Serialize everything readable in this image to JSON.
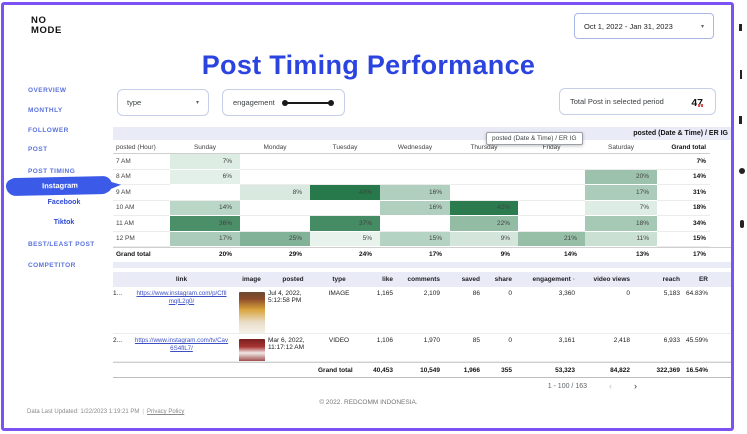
{
  "brand": {
    "line1": "NO",
    "line2": "MODE"
  },
  "header": {
    "date_range": "Oct 1, 2022 - Jan 31, 2023",
    "title": "Post Timing Performance"
  },
  "icons": {
    "dropdown": "▾",
    "prev": "‹",
    "next": "›"
  },
  "sidebar": {
    "items": [
      {
        "label": "OVERVIEW",
        "type": "section"
      },
      {
        "label": "MONTHLY",
        "type": "section"
      },
      {
        "label": "FOLLOWER",
        "type": "section"
      },
      {
        "label": "POST",
        "type": "section"
      },
      {
        "label": "POST TIMING",
        "type": "section"
      },
      {
        "label": "Instagram",
        "type": "sub-active"
      },
      {
        "label": "Facebook",
        "type": "sub"
      },
      {
        "label": "Tiktok",
        "type": "sub"
      },
      {
        "label": "BEST/LEAST POST",
        "type": "section"
      },
      {
        "label": "COMPETITOR",
        "type": "section"
      }
    ]
  },
  "filters": {
    "type_label": "type",
    "engagement_label": "engagement"
  },
  "scorecard": {
    "label": "Total Post in selected period",
    "value": "47"
  },
  "heatmap": {
    "section_title": "posted (Date & Time) / ER IG",
    "tooltip": "posted (Date & Time) / ER IG",
    "columns": [
      "posted (Hour)",
      "Sunday",
      "Monday",
      "Tuesday",
      "Wednesday",
      "Thursday",
      "Friday",
      "Saturday",
      "Grand total"
    ],
    "rows": [
      {
        "label": "7 AM",
        "values": [
          "7%",
          "",
          "",
          "",
          "",
          "",
          "",
          "7%"
        ]
      },
      {
        "label": "8 AM",
        "values": [
          "6%",
          "",
          "",
          "",
          "",
          "",
          "20%",
          "14%"
        ]
      },
      {
        "label": "9 AM",
        "values": [
          "",
          "8%",
          "43%",
          "16%",
          "",
          "",
          "17%",
          "31%"
        ]
      },
      {
        "label": "10 AM",
        "values": [
          "14%",
          "",
          "",
          "16%",
          "42%",
          "",
          "7%",
          "18%"
        ]
      },
      {
        "label": "11 AM",
        "values": [
          "36%",
          "",
          "37%",
          "",
          "22%",
          "",
          "18%",
          "34%"
        ]
      },
      {
        "label": "12 PM",
        "values": [
          "17%",
          "25%",
          "5%",
          "15%",
          "9%",
          "21%",
          "11%",
          "15%"
        ]
      },
      {
        "label": "Grand total",
        "values": [
          "20%",
          "29%",
          "24%",
          "17%",
          "9%",
          "14%",
          "13%",
          "17%"
        ],
        "is_total": true
      }
    ],
    "heat_low_color": "#e8f3ed",
    "heat_high_color": "#27784a"
  },
  "posts": {
    "columns": [
      "link",
      "image",
      "posted",
      "type",
      "like",
      "comments",
      "saved",
      "share",
      "engagement",
      "video views",
      "reach",
      "ER"
    ],
    "sort_indicator": "·",
    "rows": [
      {
        "num": "1...",
        "link": "https://www.instagram.com/p/CfIlmqlL2g0/",
        "posted": "Jul 4, 2022, 5:12:58 PM",
        "type": "IMAGE",
        "like": "1,165",
        "comments": "2,109",
        "saved": "86",
        "share": "0",
        "engagement": "3,360",
        "video_views": "0",
        "reach": "5,183",
        "er": "64.83%"
      },
      {
        "num": "2...",
        "link": "https://www.instagram.com/tv/Cav6S4flL7/",
        "posted": "Mar 6, 2022, 11:17:12 AM",
        "type": "VIDEO",
        "like": "1,106",
        "comments": "1,970",
        "saved": "85",
        "share": "0",
        "engagement": "3,161",
        "video_views": "2,418",
        "reach": "6,933",
        "er": "45.59%"
      }
    ],
    "grand_total": {
      "label": "Grand total",
      "like": "40,453",
      "comments": "10,549",
      "saved": "1,966",
      "share": "355",
      "engagement": "53,323",
      "video_views": "84,822",
      "reach": "322,369",
      "er": "16.54%"
    },
    "pagination": {
      "range": "1 - 100 / 163",
      "prev": "‹",
      "next": "›"
    }
  },
  "footer": {
    "copyright": "© 2022. REDCOMM INDONESIA.",
    "updated": "Data Last Updated: 1/22/2023 1:19:21 PM",
    "separator": "|",
    "privacy": "Privacy Policy"
  },
  "colors": {
    "accent_purple": "#7d52f2",
    "title_blue": "#2b44e0",
    "sidebar_blue": "#5a72dd",
    "highlight_blue": "#3c5ae8",
    "lavender_header": "#e9ebf7"
  }
}
